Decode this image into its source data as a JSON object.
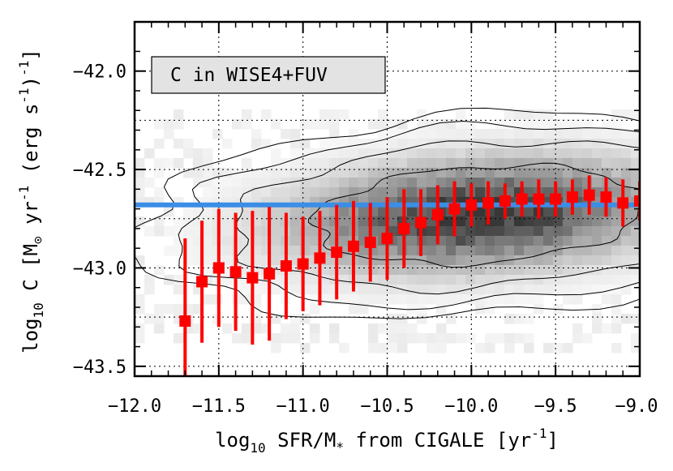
{
  "chart_data": {
    "type": "scatter",
    "title": "",
    "legend_box": "C in WISE4+FUV",
    "xlabel": {
      "prefix": "log",
      "sub": "10",
      "main": " SFR/M",
      "sub2": "*",
      "suffix": " from CIGALE [yr",
      "sup": "-1",
      "end": "]"
    },
    "ylabel": {
      "prefix": "log",
      "sub": "10",
      "main": " C [M",
      "sub2": "⊙",
      "mid": " yr",
      "sup": "-1",
      "mid2": " (erg s",
      "sup2": "-1",
      "end": ")",
      "sup3": "-1",
      "end2": "]"
    },
    "xlim": [
      -12.0,
      -9.0
    ],
    "ylim": [
      -43.55,
      -41.75
    ],
    "xticks": [
      -12.0,
      -11.5,
      -11.0,
      -10.5,
      -10.0,
      -9.5,
      -9.0
    ],
    "xtick_labels": [
      "−12.0",
      "−11.5",
      "−11.0",
      "−10.5",
      "−10.0",
      "−9.5",
      "−9.0"
    ],
    "yticks": [
      -42.0,
      -42.5,
      -43.0,
      -43.5
    ],
    "ytick_labels": [
      "−42.0",
      "−42.5",
      "−43.0",
      "−43.5"
    ],
    "grid": true,
    "reference_line": {
      "y": -42.68,
      "color": "#3a8ee6"
    },
    "points": {
      "color": "#ff0000",
      "x": [
        -11.7,
        -11.6,
        -11.5,
        -11.4,
        -11.3,
        -11.2,
        -11.1,
        -11.0,
        -10.9,
        -10.8,
        -10.7,
        -10.6,
        -10.5,
        -10.4,
        -10.3,
        -10.2,
        -10.1,
        -10.0,
        -9.9,
        -9.8,
        -9.7,
        -9.6,
        -9.5,
        -9.4,
        -9.3,
        -9.2,
        -9.1,
        -9.0
      ],
      "y": [
        -43.27,
        -43.07,
        -43.0,
        -43.02,
        -43.05,
        -43.03,
        -42.99,
        -42.98,
        -42.95,
        -42.92,
        -42.89,
        -42.87,
        -42.85,
        -42.8,
        -42.77,
        -42.73,
        -42.7,
        -42.68,
        -42.67,
        -42.66,
        -42.65,
        -42.65,
        -42.65,
        -42.64,
        -42.63,
        -42.64,
        -42.67,
        -42.66
      ],
      "err": [
        0.42,
        0.31,
        0.3,
        0.3,
        0.34,
        0.34,
        0.27,
        0.24,
        0.24,
        0.24,
        0.23,
        0.2,
        0.21,
        0.2,
        0.17,
        0.15,
        0.14,
        0.11,
        0.11,
        0.09,
        0.09,
        0.1,
        0.09,
        0.09,
        0.1,
        0.1,
        0.12,
        0.1
      ]
    },
    "density": {
      "peak_x": -9.95,
      "peak_y": -42.73,
      "sigma_x": 0.55,
      "sigma_y": 0.25,
      "tilt": 0.16,
      "colormap": "greyscale"
    },
    "contours": {
      "levels": [
        0.9,
        2.0,
        3.0,
        3.9
      ],
      "color": "#000000"
    }
  }
}
